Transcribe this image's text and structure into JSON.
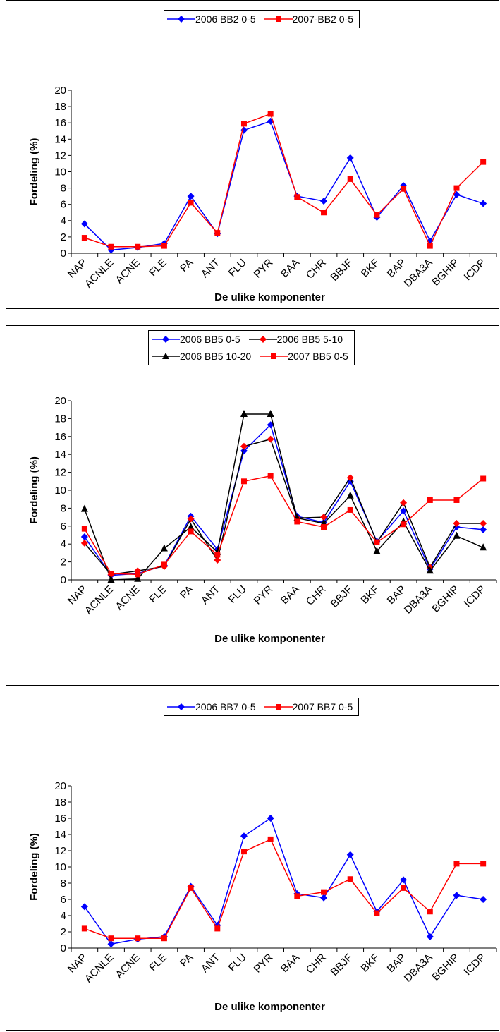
{
  "charts": [
    {
      "chart_data": {
        "type": "line",
        "categories": [
          "NAP",
          "ACNLE",
          "ACNE",
          "FLE",
          "PA",
          "ANT",
          "FLU",
          "PYR",
          "BAA",
          "CHR",
          "BBJF",
          "BKF",
          "BAP",
          "DBA3A",
          "BGHIP",
          "ICDP"
        ],
        "xlabel": "De ulike komponenter",
        "ylabel": "Fordeling (%)",
        "ylim": [
          0,
          20
        ],
        "yticks": [
          0,
          2,
          4,
          6,
          8,
          10,
          12,
          14,
          16,
          18,
          20
        ],
        "grid": false,
        "legend_position": "top",
        "series": [
          {
            "name": "2006 BB2 0-5",
            "color": "#0000ff",
            "marker": "diamond",
            "values": [
              3.6,
              0.4,
              0.7,
              1.2,
              7.0,
              2.4,
              15.1,
              16.2,
              7.0,
              6.4,
              11.7,
              4.4,
              8.3,
              1.5,
              7.2,
              6.1
            ]
          },
          {
            "name": "2007-BB2 0-5",
            "color": "#ff0000",
            "marker": "square",
            "values": [
              1.9,
              0.8,
              0.8,
              0.9,
              6.2,
              2.5,
              15.9,
              17.1,
              6.9,
              5.0,
              9.1,
              4.7,
              7.9,
              0.9,
              8.0,
              11.2
            ]
          }
        ]
      }
    },
    {
      "chart_data": {
        "type": "line",
        "categories": [
          "NAP",
          "ACNLE",
          "ACNE",
          "FLE",
          "PA",
          "ANT",
          "FLU",
          "PYR",
          "BAA",
          "CHR",
          "BBJF",
          "BKF",
          "BAP",
          "DBA3A",
          "BGHIP",
          "ICDP"
        ],
        "xlabel": "De ulike komponenter",
        "ylabel": "Fordeling (%)",
        "ylim": [
          0,
          20
        ],
        "yticks": [
          0,
          2,
          4,
          6,
          8,
          10,
          12,
          14,
          16,
          18,
          20
        ],
        "grid": false,
        "legend_position": "top",
        "series": [
          {
            "name": "2006 BB5 0-5",
            "color": "#0000ff",
            "marker": "diamond",
            "values": [
              4.8,
              0.5,
              0.7,
              1.6,
              7.1,
              3.4,
              14.4,
              17.3,
              7.1,
              6.4,
              11.0,
              4.3,
              7.7,
              1.2,
              5.9,
              5.6
            ]
          },
          {
            "name": "2006 BB5 5-10",
            "color": "#ff0000",
            "line_color": "#000000",
            "marker": "diamond",
            "values": [
              4.1,
              0.6,
              1.0,
              1.5,
              6.8,
              2.2,
              14.9,
              15.7,
              6.9,
              7.0,
              11.4,
              4.2,
              8.6,
              1.4,
              6.3,
              6.3
            ]
          },
          {
            "name": "2006 BB5 10-20",
            "color": "#000000",
            "marker": "triangle",
            "values": [
              7.9,
              0.0,
              0.1,
              3.5,
              5.9,
              3.1,
              18.5,
              18.5,
              6.9,
              6.3,
              9.4,
              3.2,
              6.5,
              1.0,
              4.9,
              3.6
            ]
          },
          {
            "name": "2007 BB5 0-5",
            "color": "#ff0000",
            "marker": "square",
            "values": [
              5.7,
              0.7,
              0.6,
              1.7,
              5.4,
              2.8,
              11.0,
              11.6,
              6.5,
              5.9,
              7.8,
              4.2,
              6.2,
              8.9,
              8.9,
              11.3
            ]
          }
        ]
      }
    },
    {
      "chart_data": {
        "type": "line",
        "categories": [
          "NAP",
          "ACNLE",
          "ACNE",
          "FLE",
          "PA",
          "ANT",
          "FLU",
          "PYR",
          "BAA",
          "CHR",
          "BBJF",
          "BKF",
          "BAP",
          "DBA3A",
          "BGHIP",
          "ICDP"
        ],
        "xlabel": "De ulike komponenter",
        "ylabel": "Fordeling (%)",
        "ylim": [
          0,
          20
        ],
        "yticks": [
          0,
          2,
          4,
          6,
          8,
          10,
          12,
          14,
          16,
          18,
          20
        ],
        "grid": false,
        "legend_position": "top",
        "series": [
          {
            "name": "2006 BB7 0-5",
            "color": "#0000ff",
            "marker": "diamond",
            "values": [
              5.1,
              0.5,
              1.1,
              1.4,
              7.6,
              2.8,
              13.8,
              16.0,
              6.7,
              6.2,
              11.5,
              4.5,
              8.4,
              1.4,
              6.5,
              6.0
            ]
          },
          {
            "name": "2007 BB7 0-5",
            "color": "#ff0000",
            "marker": "square",
            "values": [
              2.4,
              1.2,
              1.2,
              1.2,
              7.4,
              2.4,
              11.9,
              13.4,
              6.4,
              6.9,
              8.5,
              4.3,
              7.4,
              4.5,
              10.4,
              10.4
            ]
          }
        ]
      }
    }
  ]
}
